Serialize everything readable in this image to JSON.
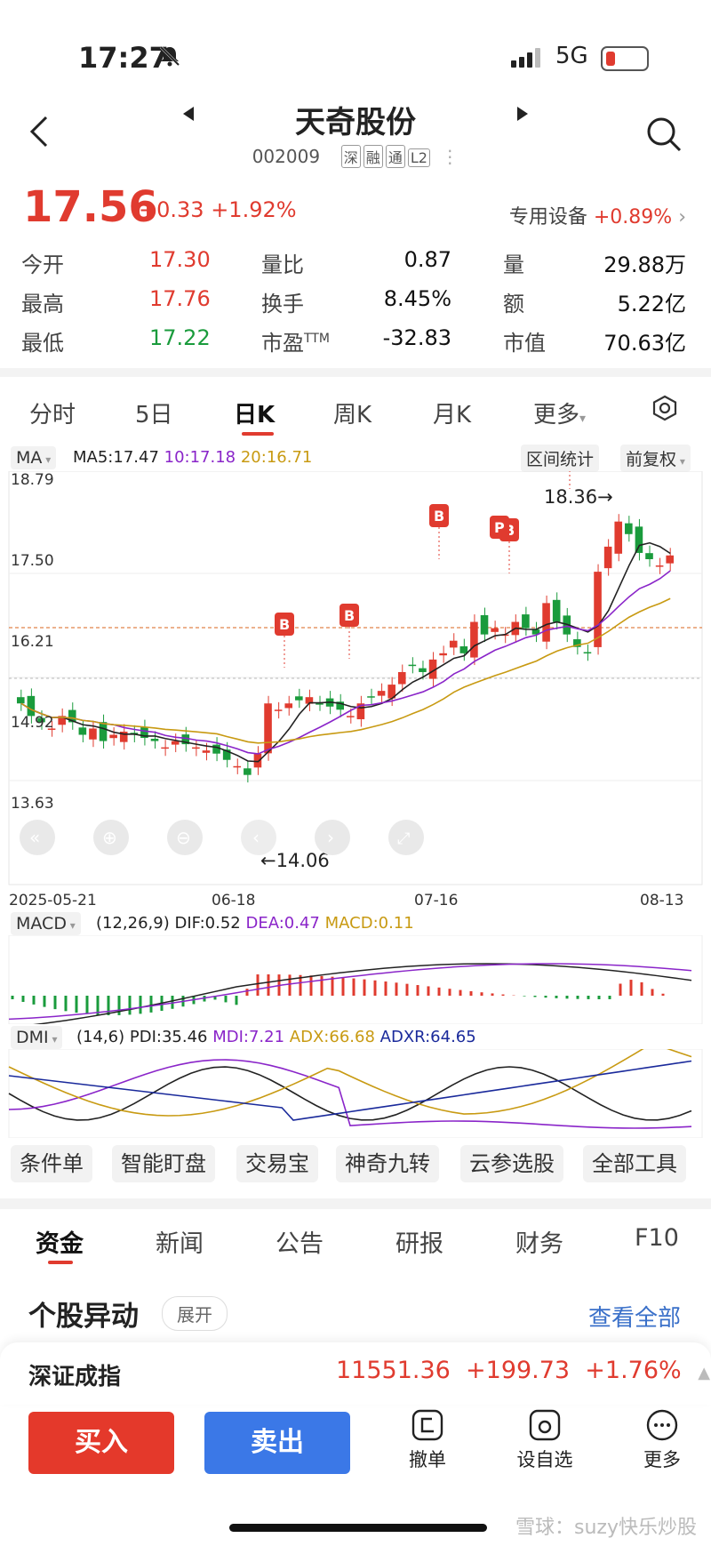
{
  "status_bar": {
    "time": "17:27",
    "network": "5G"
  },
  "header": {
    "title": "天奇股份",
    "code": "002009",
    "tags": [
      "深",
      "融",
      "通",
      "L2"
    ]
  },
  "quote": {
    "price": "17.56",
    "change": "+0.33",
    "change_pct": "+1.92%",
    "sector": "专用设备",
    "sector_pct": "+0.89%",
    "stats": [
      {
        "label": "今开",
        "value": "17.30",
        "color": "red"
      },
      {
        "label": "量比",
        "value": "0.87",
        "color": "black"
      },
      {
        "label": "量",
        "value": "29.88万",
        "color": "black"
      },
      {
        "label": "最高",
        "value": "17.76",
        "color": "red"
      },
      {
        "label": "换手",
        "value": "8.45%",
        "color": "black"
      },
      {
        "label": "额",
        "value": "5.22亿",
        "color": "black"
      },
      {
        "label": "最低",
        "value": "17.22",
        "color": "green"
      },
      {
        "label": "市盈TTM",
        "value": "-32.83",
        "color": "black"
      },
      {
        "label": "市值",
        "value": "70.63亿",
        "color": "black"
      }
    ]
  },
  "tabs": [
    "分时",
    "5日",
    "日K",
    "周K",
    "月K",
    "更多"
  ],
  "active_tab": "日K",
  "chart_toolbar": {
    "indicator": "MA",
    "ma5": "MA5:17.47",
    "ma10": "10:17.18",
    "ma20": "20:16.71",
    "range_button": "区间统计",
    "adjust_button": "前复权"
  },
  "chart_data": {
    "type": "candlestick",
    "y_ticks": [
      "18.79",
      "17.50",
      "16.21",
      "14.92",
      "13.63"
    ],
    "ylim": [
      13.63,
      18.79
    ],
    "x_ticks": [
      "2025-05-21",
      "06-18",
      "07-16",
      "08-13"
    ],
    "high_label": "18.36→",
    "low_label": "←14.06",
    "signals": [
      "B",
      "B",
      "B",
      "B",
      "P"
    ]
  },
  "macd": {
    "name": "MACD",
    "params": "(12,26,9)",
    "dif": "DIF:0.52",
    "dea": "DEA:0.47",
    "macd": "MACD:0.11"
  },
  "dmi": {
    "name": "DMI",
    "params": "(14,6)",
    "pdi": "PDI:35.46",
    "mdi": "MDI:7.21",
    "adx": "ADX:66.68",
    "adxr": "ADXR:64.65"
  },
  "tools": [
    "条件单",
    "智能盯盘",
    "交易宝",
    "神奇九转",
    "云参选股",
    "全部工具"
  ],
  "bottom_tabs": [
    "资金",
    "新闻",
    "公告",
    "研报",
    "财务",
    "F10"
  ],
  "section": {
    "title": "个股异动",
    "expand": "展开",
    "view_all": "查看全部"
  },
  "index": {
    "name": "深证成指",
    "value": "11551.36",
    "change": "+199.73",
    "pct": "+1.76%"
  },
  "trade": {
    "buy": "买入",
    "sell": "卖出",
    "cancel": "撤单",
    "watch": "设自选",
    "more": "更多"
  },
  "watermark": "雪球：suzy快乐炒股"
}
